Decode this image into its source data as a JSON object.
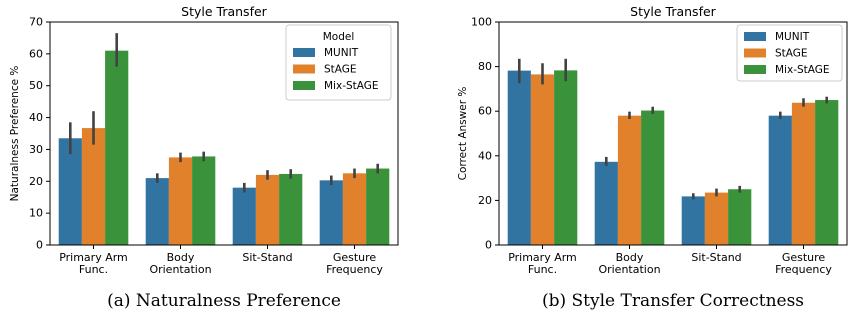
{
  "colors": {
    "MUNIT": "#3274a1",
    "StAGE": "#e1812c",
    "Mix-StAGE": "#3a923a",
    "errorbar": "#424242",
    "axis": "#000000"
  },
  "chart_data": [
    {
      "type": "bar",
      "title": "Style Transfer",
      "caption": "(a) Naturalness Preference",
      "xlabel": "",
      "ylabel": "Naturalness Preference %",
      "ylim": [
        0,
        70
      ],
      "yticks": [
        0,
        10,
        20,
        30,
        40,
        50,
        60,
        70
      ],
      "categories": [
        [
          "Primary Arm",
          "Func."
        ],
        [
          "Body",
          "Orientation"
        ],
        [
          "Sit-Stand"
        ],
        [
          "Gesture",
          "Frequency"
        ]
      ],
      "legend": {
        "title": "Model",
        "placement": "top-right"
      },
      "series": [
        {
          "name": "MUNIT",
          "values": [
            33.5,
            21,
            18,
            20.3
          ],
          "err_low": [
            28.5,
            19.5,
            16.5,
            18.8
          ],
          "err_high": [
            38.5,
            22.5,
            19.5,
            21.8
          ]
        },
        {
          "name": "StAGE",
          "values": [
            36.7,
            27.5,
            22,
            22.5
          ],
          "err_low": [
            31.5,
            26,
            20.5,
            21
          ],
          "err_high": [
            42,
            29,
            23.5,
            24
          ]
        },
        {
          "name": "Mix-StAGE",
          "values": [
            61,
            27.8,
            22.3,
            24
          ],
          "err_low": [
            56,
            26.3,
            20.8,
            22.5
          ],
          "err_high": [
            66.5,
            29.3,
            23.8,
            25.5
          ]
        }
      ]
    },
    {
      "type": "bar",
      "title": "Style Transfer",
      "caption": "(b) Style Transfer Correctness",
      "xlabel": "",
      "ylabel": "Correct Answer %",
      "ylim": [
        0,
        100
      ],
      "yticks": [
        0,
        20,
        40,
        60,
        80,
        100
      ],
      "categories": [
        [
          "Primary Arm",
          "Func."
        ],
        [
          "Body",
          "Orientation"
        ],
        [
          "Sit-Stand"
        ],
        [
          "Gesture",
          "Frequency"
        ]
      ],
      "legend": {
        "title": "",
        "placement": "top-right"
      },
      "series": [
        {
          "name": "MUNIT",
          "values": [
            78.2,
            37.3,
            21.8,
            58
          ],
          "err_low": [
            72.5,
            35.5,
            20.5,
            56.5
          ],
          "err_high": [
            83.5,
            39.5,
            23.2,
            59.8
          ]
        },
        {
          "name": "StAGE",
          "values": [
            76.5,
            58,
            23.5,
            63.8
          ],
          "err_low": [
            72,
            56.5,
            21.8,
            62
          ],
          "err_high": [
            81.5,
            59.8,
            25.3,
            65.8
          ]
        },
        {
          "name": "Mix-StAGE",
          "values": [
            78.3,
            60.3,
            25,
            65
          ],
          "err_low": [
            73.5,
            58.8,
            23.5,
            63.5
          ],
          "err_high": [
            83.5,
            62,
            26.5,
            66.5
          ]
        }
      ]
    }
  ]
}
